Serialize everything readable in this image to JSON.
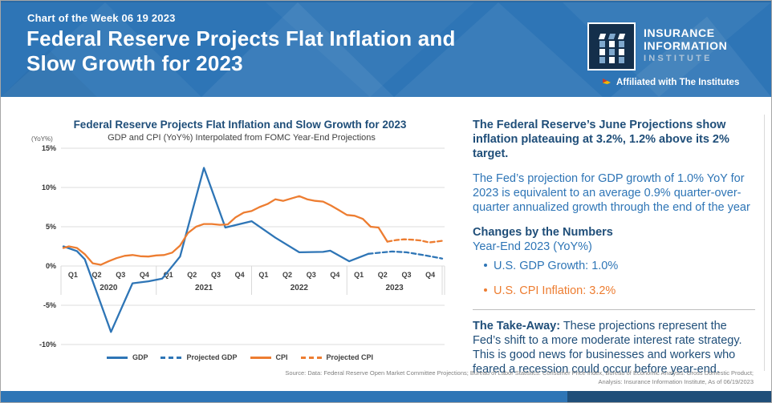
{
  "header": {
    "eyebrow": "Chart of the Week 06 19 2023",
    "title_line1": "Federal Reserve Projects Flat Inflation and",
    "title_line2": "Slow Growth for 2023",
    "logo": {
      "mark": "iii",
      "name_line1": "INSURANCE",
      "name_line2": "INFORMATION",
      "name_line3": "INSTITUTE",
      "affiliation": "Affiliated with The Institutes"
    }
  },
  "chart_data": {
    "type": "line",
    "title": "Federal Reserve Projects Flat Inflation and Slow Growth for 2023",
    "subtitle": "GDP and CPI (YoY%) Interpolated from FOMC Year-End Projections",
    "y_axis": {
      "label": "(YoY%)",
      "tick_values": [
        15,
        10,
        5,
        0,
        -5,
        -10
      ],
      "ticks": [
        "15%",
        "10%",
        "5%",
        "0%",
        "-5%",
        "-10%"
      ],
      "min": -10,
      "max": 15,
      "grid": true
    },
    "x_axis": {
      "quarters": [
        "Q1",
        "Q2",
        "Q3",
        "Q4",
        "Q1",
        "Q2",
        "Q3",
        "Q4",
        "Q1",
        "Q2",
        "Q3",
        "Q4",
        "Q1",
        "Q2",
        "Q3",
        "Q4"
      ],
      "years": [
        "2020",
        "2021",
        "2022",
        "2023"
      ],
      "unit_note": "x values are quarters elapsed since start of 2020 (values plotted at period end)"
    },
    "legend_position": "bottom",
    "series": [
      {
        "name": "GDP",
        "style": "solid",
        "color": "#2E75B6",
        "points": [
          [
            0.1,
            2.5
          ],
          [
            0.67,
            1.9
          ],
          [
            1,
            0.85
          ],
          [
            2.1,
            -8.4
          ],
          [
            3,
            -2.2
          ],
          [
            3.67,
            -1.95
          ],
          [
            4.25,
            -1.6
          ],
          [
            5,
            1.2
          ],
          [
            6,
            12.5
          ],
          [
            6.9,
            4.9
          ],
          [
            8,
            5.7
          ],
          [
            9,
            3.6
          ],
          [
            10,
            1.75
          ],
          [
            11,
            1.8
          ],
          [
            11.3,
            1.95
          ],
          [
            12.1,
            0.6
          ],
          [
            12.9,
            1.55
          ]
        ]
      },
      {
        "name": "Projected GDP",
        "style": "dashed",
        "color": "#2E75B6",
        "points": [
          [
            12.9,
            1.55
          ],
          [
            13.4,
            1.7
          ],
          [
            13.9,
            1.85
          ],
          [
            14.5,
            1.75
          ],
          [
            15.2,
            1.4
          ],
          [
            16,
            0.95
          ]
        ]
      },
      {
        "name": "CPI",
        "style": "solid",
        "color": "#ED7D31",
        "points": [
          [
            0.1,
            2.3
          ],
          [
            0.33,
            2.5
          ],
          [
            0.67,
            2.3
          ],
          [
            1,
            1.5
          ],
          [
            1.33,
            0.35
          ],
          [
            1.67,
            0.15
          ],
          [
            2,
            0.6
          ],
          [
            2.33,
            1.0
          ],
          [
            2.67,
            1.3
          ],
          [
            3,
            1.4
          ],
          [
            3.33,
            1.25
          ],
          [
            3.67,
            1.2
          ],
          [
            4,
            1.35
          ],
          [
            4.33,
            1.4
          ],
          [
            4.67,
            1.7
          ],
          [
            5,
            2.6
          ],
          [
            5.33,
            4.2
          ],
          [
            5.67,
            5.0
          ],
          [
            6,
            5.35
          ],
          [
            6.33,
            5.35
          ],
          [
            6.67,
            5.25
          ],
          [
            7,
            5.3
          ],
          [
            7.33,
            6.2
          ],
          [
            7.67,
            6.8
          ],
          [
            8,
            7.0
          ],
          [
            8.33,
            7.5
          ],
          [
            8.67,
            7.9
          ],
          [
            9,
            8.5
          ],
          [
            9.33,
            8.3
          ],
          [
            9.67,
            8.6
          ],
          [
            10,
            8.9
          ],
          [
            10.33,
            8.5
          ],
          [
            10.67,
            8.3
          ],
          [
            11,
            8.2
          ],
          [
            11.33,
            7.7
          ],
          [
            11.67,
            7.1
          ],
          [
            12,
            6.5
          ],
          [
            12.33,
            6.4
          ],
          [
            12.67,
            6.0
          ],
          [
            13,
            5.0
          ],
          [
            13.33,
            4.9
          ],
          [
            13.7,
            3.1
          ]
        ]
      },
      {
        "name": "Projected CPI",
        "style": "dashed",
        "color": "#ED7D31",
        "points": [
          [
            13.7,
            3.1
          ],
          [
            14.05,
            3.3
          ],
          [
            14.4,
            3.4
          ],
          [
            14.75,
            3.35
          ],
          [
            15.1,
            3.25
          ],
          [
            15.45,
            3.0
          ],
          [
            15.75,
            3.1
          ],
          [
            16,
            3.2
          ]
        ]
      }
    ]
  },
  "panel": {
    "headline": "The Federal Reserve’s June Projections show inflation plateauing at 3.2%, 1.2% above its 2% target.",
    "para1": "The Fed’s projection for GDP growth of 1.0% YoY for 2023 is equivalent to an average 0.9% quarter-over-quarter annualized growth through the end of the year",
    "changes_heading": "Changes by the Numbers",
    "changes_subheading": "Year-End 2023 (YoY%)",
    "bullets": [
      {
        "label": "U.S. GDP Growth: 1.0%",
        "color": "#2E75B6"
      },
      {
        "label": "U.S. CPI Inflation: 3.2%",
        "color": "#ED7D31"
      }
    ],
    "takeaway_lead": "The Take-Away:",
    "takeaway_text": " These projections represent the Fed’s shift to a more moderate interest rate strategy. This is good news for businesses and workers who feared a recession could occur before year-end."
  },
  "footer": {
    "source_line1": "Source: Data: Federal Reserve Open Market Committee Projections; Bureau of Labor Statistics: Consumer Price Index, Bureau of Economic Analysis: Gross Domestic Product;",
    "source_line2": "Analysis: Insurance Information Institute, As of 06/19/2023"
  },
  "colors": {
    "header_blue": "#2E75B6",
    "navy": "#1F4E79",
    "gdp_blue": "#2E75B6",
    "cpi_orange": "#ED7D31",
    "grid_gray": "#DCDCDC",
    "footer_bar_left": "#2E75B6",
    "footer_bar_right": "#1F4E79"
  }
}
